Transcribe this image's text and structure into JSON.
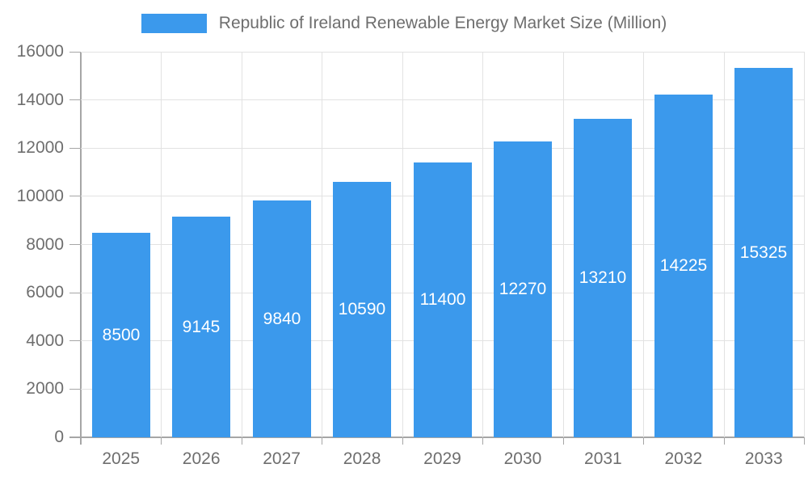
{
  "legend": {
    "label": "Republic of Ireland Renewable Energy Market Size (Million)",
    "swatch_color": "#3b99ec"
  },
  "chart_data": {
    "type": "bar",
    "title": "Republic of Ireland Renewable Energy Market Size (Million)",
    "categories": [
      "2025",
      "2026",
      "2027",
      "2028",
      "2029",
      "2030",
      "2031",
      "2032",
      "2033"
    ],
    "values": [
      8500,
      9145,
      9840,
      10590,
      11400,
      12270,
      13210,
      14225,
      15325
    ],
    "data_labels": [
      "8500",
      "9145",
      "9840",
      "10590",
      "11400",
      "12270",
      "13210",
      "14225",
      "15325"
    ],
    "xlabel": "",
    "ylabel": "",
    "ylim": [
      0,
      16000
    ],
    "yticks": [
      0,
      2000,
      4000,
      6000,
      8000,
      10000,
      12000,
      14000,
      16000
    ],
    "legend_position": "top-center",
    "grid": true,
    "bar_color": "#3b99ec",
    "data_label_color": "#ffffff",
    "axis_text_color": "#6e6e6e",
    "grid_color": "#e2e2e2",
    "axis_line_color": "#a6a6a6",
    "background_color": "#ffffff"
  }
}
